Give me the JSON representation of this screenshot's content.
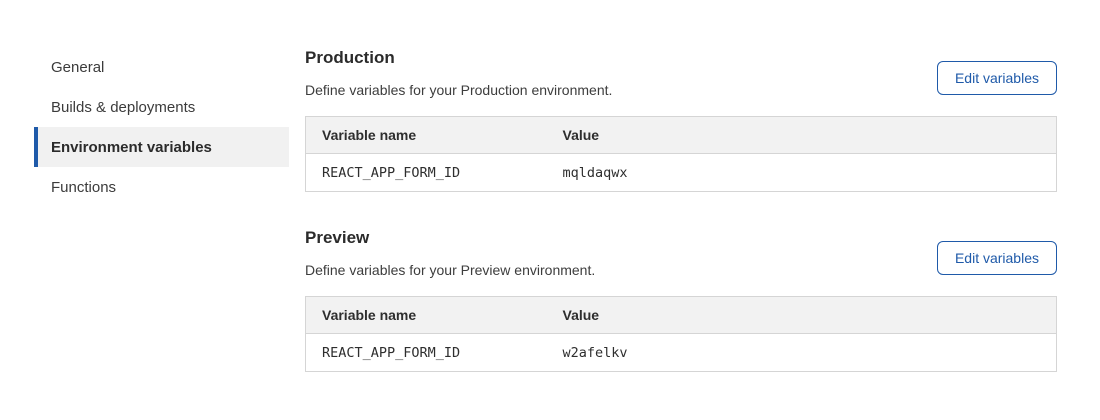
{
  "sidebar": {
    "items": [
      {
        "label": "General",
        "selected": false
      },
      {
        "label": "Builds & deployments",
        "selected": false
      },
      {
        "label": "Environment variables",
        "selected": true
      },
      {
        "label": "Functions",
        "selected": false
      }
    ]
  },
  "sections": [
    {
      "title": "Production",
      "description": "Define variables for your Production environment.",
      "button_label": "Edit variables",
      "table": {
        "headers": [
          "Variable name",
          "Value"
        ],
        "rows": [
          {
            "name": "REACT_APP_FORM_ID",
            "value": "mqldaqwx"
          }
        ]
      }
    },
    {
      "title": "Preview",
      "description": "Define variables for your Preview environment.",
      "button_label": "Edit variables",
      "table": {
        "headers": [
          "Variable name",
          "Value"
        ],
        "rows": [
          {
            "name": "REACT_APP_FORM_ID",
            "value": "w2afelkv"
          }
        ]
      }
    }
  ],
  "colors": {
    "accent_blue": "#1f5aa9",
    "selected_bg": "#f1f1f1",
    "table_header_bg": "#f2f2f2",
    "table_border": "#d5d5d5"
  }
}
